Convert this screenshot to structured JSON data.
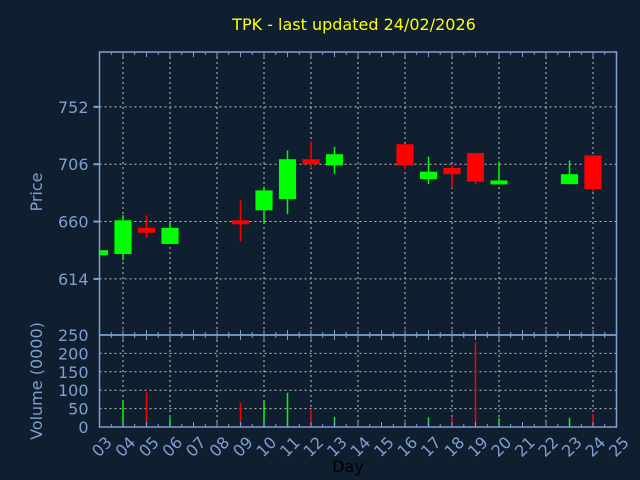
{
  "chart_data": [
    {
      "type": "candlestick",
      "title": "TPK - last updated 24/02/2026",
      "xlabel": "Day",
      "ylabel": "Price",
      "ylim": [
        569,
        796
      ],
      "xlim": [
        3,
        25
      ],
      "yticks": [
        614,
        660,
        706,
        752
      ],
      "xticks": [
        "03",
        "04",
        "05",
        "06",
        "07",
        "08",
        "09",
        "10",
        "11",
        "12",
        "13",
        "14",
        "15",
        "16",
        "17",
        "18",
        "19",
        "20",
        "21",
        "22",
        "23",
        "24",
        "25"
      ],
      "grid": true,
      "up_color": "#00ff00",
      "down_color": "#ff0000",
      "candles": [
        {
          "day": 3,
          "open": 633,
          "high": 637,
          "low": 633,
          "close": 637
        },
        {
          "day": 4,
          "open": 634,
          "high": 665,
          "low": 629,
          "close": 661
        },
        {
          "day": 5,
          "open": 655,
          "high": 665,
          "low": 647,
          "close": 651
        },
        {
          "day": 6,
          "open": 642,
          "high": 659,
          "low": 642,
          "close": 655
        },
        {
          "day": 9,
          "open": 661,
          "high": 677,
          "low": 644,
          "close": 658
        },
        {
          "day": 10,
          "open": 669,
          "high": 688,
          "low": 658,
          "close": 685
        },
        {
          "day": 11,
          "open": 678,
          "high": 717,
          "low": 666,
          "close": 710
        },
        {
          "day": 12,
          "open": 710,
          "high": 724,
          "low": 703,
          "close": 706
        },
        {
          "day": 13,
          "open": 705,
          "high": 720,
          "low": 698,
          "close": 714
        },
        {
          "day": 16,
          "open": 722,
          "high": 722,
          "low": 702,
          "close": 705
        },
        {
          "day": 17,
          "open": 694,
          "high": 712,
          "low": 690,
          "close": 700
        },
        {
          "day": 18,
          "open": 703,
          "high": 705,
          "low": 687,
          "close": 698
        },
        {
          "day": 19,
          "open": 715,
          "high": 715,
          "low": 690,
          "close": 692
        },
        {
          "day": 20,
          "open": 690,
          "high": 708,
          "low": 690,
          "close": 693
        },
        {
          "day": 23,
          "open": 690,
          "high": 709,
          "low": 690,
          "close": 698
        },
        {
          "day": 24,
          "open": 713,
          "high": 713,
          "low": 684,
          "close": 686
        }
      ]
    },
    {
      "type": "bar",
      "ylabel": "Volume (0000)",
      "xlabel": "Day",
      "ylim": [
        0,
        250
      ],
      "yticks": [
        0,
        50,
        100,
        150,
        200,
        250
      ],
      "grid": true,
      "bars": [
        {
          "day": 4,
          "value": 68,
          "dir": "up"
        },
        {
          "day": 5,
          "value": 94,
          "dir": "down"
        },
        {
          "day": 6,
          "value": 26,
          "dir": "up"
        },
        {
          "day": 9,
          "value": 66,
          "dir": "down"
        },
        {
          "day": 10,
          "value": 71,
          "dir": "up"
        },
        {
          "day": 11,
          "value": 93,
          "dir": "up"
        },
        {
          "day": 12,
          "value": 48,
          "dir": "down"
        },
        {
          "day": 13,
          "value": 27,
          "dir": "up"
        },
        {
          "day": 16,
          "value": 16,
          "dir": "down"
        },
        {
          "day": 17,
          "value": 26,
          "dir": "up"
        },
        {
          "day": 18,
          "value": 27,
          "dir": "down"
        },
        {
          "day": 19,
          "value": 230,
          "dir": "down"
        },
        {
          "day": 20,
          "value": 24,
          "dir": "up"
        },
        {
          "day": 23,
          "value": 25,
          "dir": "up"
        },
        {
          "day": 24,
          "value": 35,
          "dir": "down"
        }
      ]
    }
  ]
}
